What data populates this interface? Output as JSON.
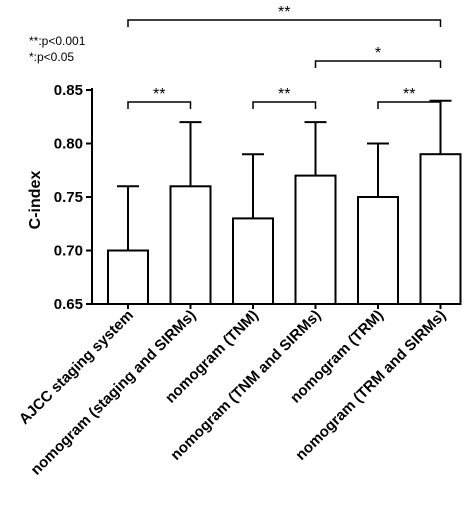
{
  "chart_data": {
    "type": "bar",
    "ylabel": "C-index",
    "ylim": [
      0.65,
      0.85
    ],
    "yticks": [
      "0.65",
      "0.70",
      "0.75",
      "0.80",
      "0.85"
    ],
    "categories": [
      "AJCC staging system",
      "nomogram (staging and SIRMs)",
      "nomogram (TNM)",
      "nomogram (TNM and SIRMs)",
      "nomogram (TRM)",
      "nomogram (TRM and SIRMs)"
    ],
    "values": [
      0.7,
      0.76,
      0.73,
      0.77,
      0.75,
      0.79
    ],
    "error_upper": [
      0.76,
      0.82,
      0.79,
      0.82,
      0.8,
      0.84
    ],
    "legend_lines": [
      "**:p<0.001",
      "*:p<0.05"
    ],
    "comparisons": [
      {
        "from": 0,
        "to": 1,
        "label": "**",
        "level": 0
      },
      {
        "from": 2,
        "to": 3,
        "label": "**",
        "level": 0
      },
      {
        "from": 4,
        "to": 5,
        "label": "**",
        "level": 0
      },
      {
        "from": 3,
        "to": 5,
        "label": "*",
        "level": 1
      },
      {
        "from": 0,
        "to": 5,
        "label": "**",
        "level": 2
      }
    ]
  }
}
